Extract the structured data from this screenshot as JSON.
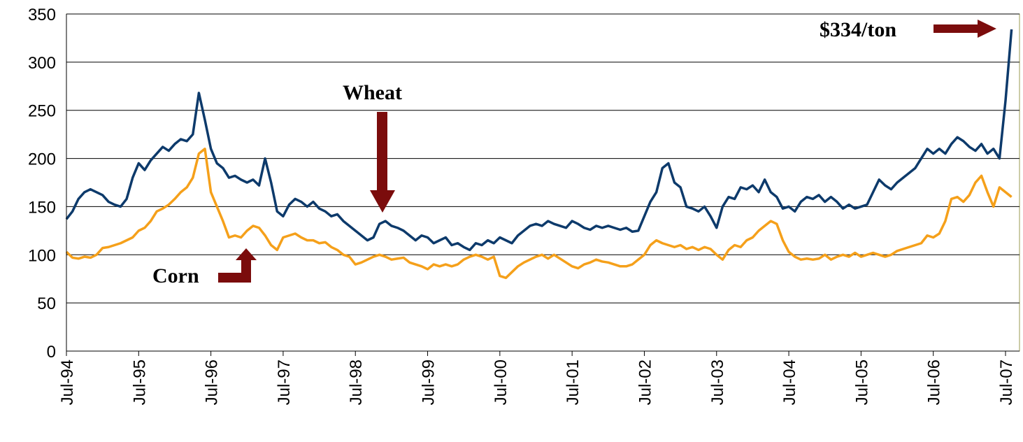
{
  "chart_data": {
    "type": "line",
    "categories": [
      "Jul-94",
      null,
      null,
      null,
      null,
      null,
      null,
      null,
      null,
      null,
      null,
      null,
      "Jul-95",
      null,
      null,
      null,
      null,
      null,
      null,
      null,
      null,
      null,
      null,
      null,
      "Jul-96",
      null,
      null,
      null,
      null,
      null,
      null,
      null,
      null,
      null,
      null,
      null,
      "Jul-97",
      null,
      null,
      null,
      null,
      null,
      null,
      null,
      null,
      null,
      null,
      null,
      "Jul-98",
      null,
      null,
      null,
      null,
      null,
      null,
      null,
      null,
      null,
      null,
      null,
      "Jul-99",
      null,
      null,
      null,
      null,
      null,
      null,
      null,
      null,
      null,
      null,
      null,
      "Jul-00",
      null,
      null,
      null,
      null,
      null,
      null,
      null,
      null,
      null,
      null,
      null,
      "Jul-01",
      null,
      null,
      null,
      null,
      null,
      null,
      null,
      null,
      null,
      null,
      null,
      "Jul-02",
      null,
      null,
      null,
      null,
      null,
      null,
      null,
      null,
      null,
      null,
      null,
      "Jul-03",
      null,
      null,
      null,
      null,
      null,
      null,
      null,
      null,
      null,
      null,
      null,
      "Jul-04",
      null,
      null,
      null,
      null,
      null,
      null,
      null,
      null,
      null,
      null,
      null,
      "Jul-05",
      null,
      null,
      null,
      null,
      null,
      null,
      null,
      null,
      null,
      null,
      null,
      "Jul-06",
      null,
      null,
      null,
      null,
      null,
      null,
      null,
      null,
      null,
      null,
      null,
      "Jul-07",
      null
    ],
    "series": [
      {
        "name": "Wheat",
        "color": "#0d3a6b",
        "values": [
          137,
          145,
          158,
          165,
          168,
          165,
          162,
          155,
          152,
          150,
          158,
          180,
          195,
          188,
          198,
          205,
          212,
          208,
          215,
          220,
          218,
          225,
          268,
          240,
          210,
          195,
          190,
          180,
          182,
          178,
          175,
          178,
          172,
          200,
          175,
          145,
          140,
          152,
          158,
          155,
          150,
          155,
          148,
          145,
          140,
          142,
          135,
          130,
          125,
          120,
          115,
          118,
          132,
          135,
          130,
          128,
          125,
          120,
          115,
          120,
          118,
          112,
          115,
          118,
          110,
          112,
          108,
          105,
          112,
          110,
          115,
          112,
          118,
          115,
          112,
          120,
          125,
          130,
          132,
          130,
          135,
          132,
          130,
          128,
          135,
          132,
          128,
          126,
          130,
          128,
          130,
          128,
          126,
          128,
          124,
          125,
          140,
          155,
          165,
          190,
          195,
          175,
          170,
          150,
          148,
          145,
          150,
          140,
          128,
          150,
          160,
          158,
          170,
          168,
          172,
          165,
          178,
          165,
          160,
          148,
          150,
          145,
          155,
          160,
          158,
          162,
          155,
          160,
          155,
          148,
          152,
          148,
          150,
          152,
          165,
          178,
          172,
          168,
          175,
          180,
          185,
          190,
          200,
          210,
          205,
          210,
          205,
          215,
          222,
          218,
          212,
          208,
          215,
          205,
          210,
          200,
          260,
          334
        ]
      },
      {
        "name": "Corn",
        "color": "#f5a01a",
        "values": [
          103,
          97,
          96,
          98,
          97,
          100,
          107,
          108,
          110,
          112,
          115,
          118,
          125,
          128,
          135,
          145,
          148,
          152,
          158,
          165,
          170,
          180,
          205,
          210,
          165,
          150,
          135,
          118,
          120,
          118,
          125,
          130,
          128,
          120,
          110,
          105,
          118,
          120,
          122,
          118,
          115,
          115,
          112,
          113,
          108,
          105,
          100,
          98,
          90,
          92,
          95,
          98,
          100,
          98,
          95,
          96,
          97,
          92,
          90,
          88,
          85,
          90,
          88,
          90,
          88,
          90,
          95,
          98,
          100,
          98,
          95,
          98,
          78,
          76,
          82,
          88,
          92,
          95,
          98,
          100,
          96,
          100,
          96,
          92,
          88,
          86,
          90,
          92,
          95,
          93,
          92,
          90,
          88,
          88,
          90,
          95,
          100,
          110,
          115,
          112,
          110,
          108,
          110,
          106,
          108,
          105,
          108,
          106,
          100,
          95,
          105,
          110,
          108,
          115,
          118,
          125,
          130,
          135,
          132,
          115,
          103,
          98,
          95,
          96,
          95,
          96,
          100,
          95,
          98,
          100,
          98,
          102,
          98,
          100,
          102,
          100,
          98,
          100,
          104,
          106,
          108,
          110,
          112,
          120,
          118,
          122,
          135,
          158,
          160,
          155,
          162,
          175,
          182,
          165,
          150,
          170,
          165,
          160
        ]
      }
    ],
    "annotations": [
      "$334/ton"
    ],
    "ylim": [
      0,
      350
    ],
    "yticks": [
      0,
      50,
      100,
      150,
      200,
      250,
      300,
      350
    ],
    "grid": true
  }
}
